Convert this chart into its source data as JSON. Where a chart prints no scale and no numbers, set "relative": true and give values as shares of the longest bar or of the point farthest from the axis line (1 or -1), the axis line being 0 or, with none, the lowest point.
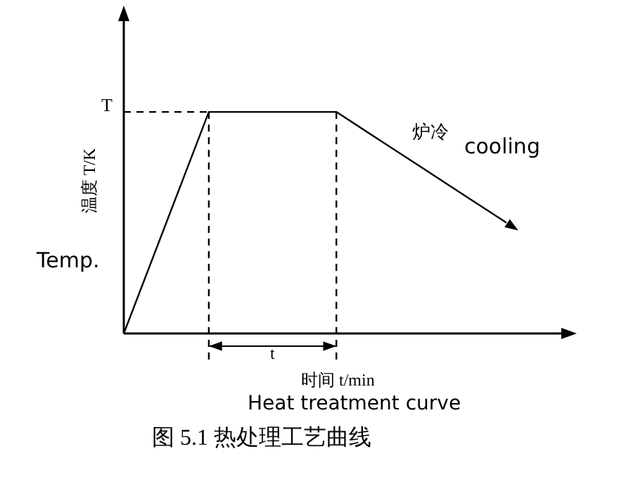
{
  "chart_data": {
    "type": "line",
    "title": "图 5.1  热处理工艺曲线",
    "xlabel": "时间 t/min",
    "ylabel": "温度 T/K",
    "relative": true,
    "categories": [
      null,
      null,
      null,
      null,
      null,
      null,
      null,
      null,
      null,
      null
    ],
    "series": [
      {
        "color": "#000000",
        "values": [
          0,
          0.5,
          1,
          1,
          1,
          1,
          0.875,
          0.75,
          0.625,
          0.5
        ]
      }
    ],
    "marker": "none",
    "line_style": "solid",
    "legend": false,
    "ref_lines": [
      {
        "axis": "y",
        "value": 1,
        "label": "T",
        "line_style": "dashed",
        "color": "#000000"
      }
    ],
    "annotations": [
      "Temp.",
      "炉冷",
      "cooling",
      "t",
      "Heat treatment curve"
    ]
  }
}
